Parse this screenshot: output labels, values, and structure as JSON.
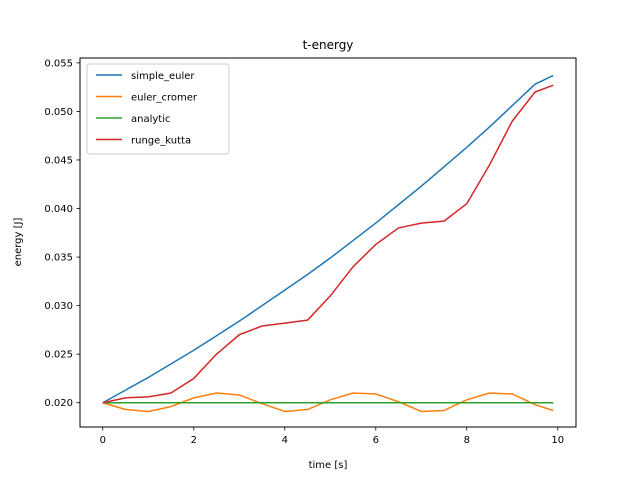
{
  "chart_data": {
    "type": "line",
    "title": "t-energy",
    "xlabel": "time [s]",
    "ylabel": "energy [J]",
    "xlim": [
      -0.5,
      10.4
    ],
    "ylim": [
      0.0175,
      0.0555
    ],
    "xticks": [
      0,
      2,
      4,
      6,
      8,
      10
    ],
    "xtick_labels": [
      "0",
      "2",
      "4",
      "6",
      "8",
      "10"
    ],
    "yticks": [
      0.02,
      0.025,
      0.03,
      0.035,
      0.04,
      0.045,
      0.05,
      0.055
    ],
    "ytick_labels": [
      "0.020",
      "0.025",
      "0.030",
      "0.035",
      "0.040",
      "0.045",
      "0.050",
      "0.055"
    ],
    "grid": false,
    "legend_position": "top-left",
    "x": [
      0.0,
      0.5,
      1.0,
      1.5,
      2.0,
      2.5,
      3.0,
      3.5,
      4.0,
      4.5,
      5.0,
      5.5,
      6.0,
      6.5,
      7.0,
      7.5,
      8.0,
      8.5,
      9.0,
      9.5,
      9.9
    ],
    "series": [
      {
        "name": "simple_euler",
        "color": "#1f77b4",
        "values": [
          0.02,
          0.0213,
          0.0226,
          0.024,
          0.0254,
          0.0269,
          0.0284,
          0.03,
          0.0316,
          0.0332,
          0.0349,
          0.0367,
          0.0385,
          0.0404,
          0.0423,
          0.0443,
          0.0463,
          0.0484,
          0.0506,
          0.0528,
          0.0537
        ]
      },
      {
        "name": "euler_cromer",
        "color": "#ff7f0e",
        "values": [
          0.02,
          0.0193,
          0.0191,
          0.0196,
          0.0205,
          0.021,
          0.0208,
          0.0199,
          0.0191,
          0.0193,
          0.0203,
          0.021,
          0.0209,
          0.0201,
          0.0191,
          0.0192,
          0.0203,
          0.021,
          0.0209,
          0.0198,
          0.0192
        ]
      },
      {
        "name": "analytic",
        "color": "#2ca02c",
        "values": [
          0.02,
          0.02,
          0.02,
          0.02,
          0.02,
          0.02,
          0.02,
          0.02,
          0.02,
          0.02,
          0.02,
          0.02,
          0.02,
          0.02,
          0.02,
          0.02,
          0.02,
          0.02,
          0.02,
          0.02,
          0.02
        ]
      },
      {
        "name": "runge_kutta",
        "color": "#d62728",
        "values": [
          0.02,
          0.0205,
          0.0206,
          0.021,
          0.0225,
          0.025,
          0.027,
          0.0279,
          0.0282,
          0.0285,
          0.031,
          0.034,
          0.0363,
          0.038,
          0.0385,
          0.0387,
          0.0405,
          0.0445,
          0.049,
          0.052,
          0.0527
        ]
      }
    ]
  }
}
